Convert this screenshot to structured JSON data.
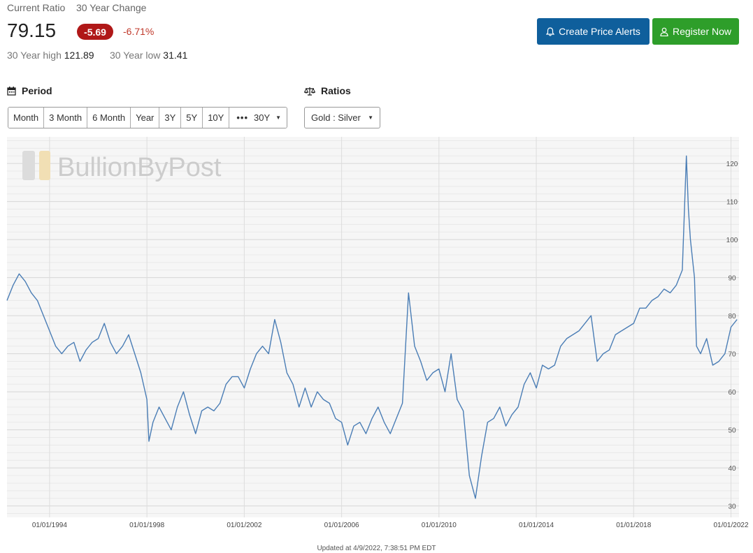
{
  "header": {
    "current_ratio_label": "Current Ratio",
    "change_label": "30 Year Change",
    "current_ratio": "79.15",
    "change_value": "-5.69",
    "change_percent": "-6.71%",
    "high_label": "30 Year high",
    "high_value": "121.89",
    "low_label": "30 Year low",
    "low_value": "31.41"
  },
  "actions": {
    "alert_label": "Create Price Alerts",
    "register_label": "Register Now",
    "alert_color": "#0f5f9c",
    "register_color": "#2e9e2a",
    "alert_icon": "bell-icon",
    "register_icon": "user-icon"
  },
  "period": {
    "title": "Period",
    "icon": "calendar-icon",
    "options": [
      "Month",
      "3 Month",
      "6 Month",
      "Year",
      "3Y",
      "5Y",
      "10Y"
    ],
    "more_icon": "ellipsis-icon",
    "selected": "30Y"
  },
  "ratios": {
    "title": "Ratios",
    "icon": "scale-icon",
    "selected": "Gold : Silver"
  },
  "watermark": "BullionByPost",
  "updated": "Updated at 4/9/2022, 7:38:51 PM EDT",
  "chart_data": {
    "type": "line",
    "title": "",
    "xlabel": "",
    "ylabel": "",
    "series": [
      {
        "color": "#4a7db5",
        "x": [
          "1992-04",
          "1992-07",
          "1992-10",
          "1993-01",
          "1993-04",
          "1993-07",
          "1993-10",
          "1994-01",
          "1994-04",
          "1994-07",
          "1994-10",
          "1995-01",
          "1995-04",
          "1995-07",
          "1995-10",
          "1996-01",
          "1996-04",
          "1996-07",
          "1996-10",
          "1997-01",
          "1997-04",
          "1997-07",
          "1997-10",
          "1998-01",
          "1998-02",
          "1998-04",
          "1998-07",
          "1998-10",
          "1999-01",
          "1999-04",
          "1999-07",
          "1999-10",
          "2000-01",
          "2000-04",
          "2000-07",
          "2000-10",
          "2001-01",
          "2001-04",
          "2001-07",
          "2001-10",
          "2002-01",
          "2002-04",
          "2002-07",
          "2002-10",
          "2003-01",
          "2003-04",
          "2003-07",
          "2003-10",
          "2004-01",
          "2004-04",
          "2004-07",
          "2004-10",
          "2005-01",
          "2005-04",
          "2005-07",
          "2005-10",
          "2006-01",
          "2006-04",
          "2006-07",
          "2006-10",
          "2007-01",
          "2007-04",
          "2007-07",
          "2007-10",
          "2008-01",
          "2008-04",
          "2008-07",
          "2008-10",
          "2009-01",
          "2009-04",
          "2009-07",
          "2009-10",
          "2010-01",
          "2010-04",
          "2010-07",
          "2010-10",
          "2011-01",
          "2011-04",
          "2011-07",
          "2011-10",
          "2012-01",
          "2012-04",
          "2012-07",
          "2012-10",
          "2013-01",
          "2013-04",
          "2013-07",
          "2013-10",
          "2014-01",
          "2014-04",
          "2014-07",
          "2014-10",
          "2015-01",
          "2015-04",
          "2015-07",
          "2015-10",
          "2016-01",
          "2016-04",
          "2016-07",
          "2016-10",
          "2017-01",
          "2017-04",
          "2017-07",
          "2017-10",
          "2018-01",
          "2018-04",
          "2018-07",
          "2018-10",
          "2019-01",
          "2019-04",
          "2019-07",
          "2019-10",
          "2020-01",
          "2020-03",
          "2020-04",
          "2020-05",
          "2020-07",
          "2020-08",
          "2020-10",
          "2021-01",
          "2021-04",
          "2021-07",
          "2021-10",
          "2022-01",
          "2022-04"
        ],
        "y": [
          84,
          88,
          91,
          89,
          86,
          84,
          80,
          76,
          72,
          70,
          72,
          73,
          68,
          71,
          73,
          74,
          78,
          73,
          70,
          72,
          75,
          70,
          65,
          58,
          47,
          52,
          56,
          53,
          50,
          56,
          60,
          54,
          49,
          55,
          56,
          55,
          57,
          62,
          64,
          64,
          61,
          66,
          70,
          72,
          70,
          79,
          73,
          65,
          62,
          56,
          61,
          56,
          60,
          58,
          57,
          53,
          52,
          46,
          51,
          52,
          49,
          53,
          56,
          52,
          49,
          53,
          57,
          86,
          72,
          68,
          63,
          65,
          66,
          60,
          70,
          58,
          55,
          38,
          32,
          43,
          52,
          53,
          56,
          51,
          54,
          56,
          62,
          65,
          61,
          67,
          66,
          67,
          72,
          74,
          75,
          76,
          78,
          80,
          68,
          70,
          71,
          75,
          76,
          77,
          78,
          82,
          82,
          84,
          85,
          87,
          86,
          88,
          92,
          122,
          108,
          100,
          90,
          72,
          70,
          74,
          67,
          68,
          70,
          77,
          79
        ],
        "point_count_note": ""
      }
    ],
    "x_ticks": [
      "01/01/1994",
      "01/01/1998",
      "01/01/2002",
      "01/01/2006",
      "01/01/2010",
      "01/01/2014",
      "01/01/2018",
      "01/01/2022"
    ],
    "y_ticks": [
      30,
      40,
      50,
      60,
      70,
      80,
      90,
      100,
      110,
      120
    ],
    "ylim": [
      27,
      127
    ],
    "grid": true
  }
}
